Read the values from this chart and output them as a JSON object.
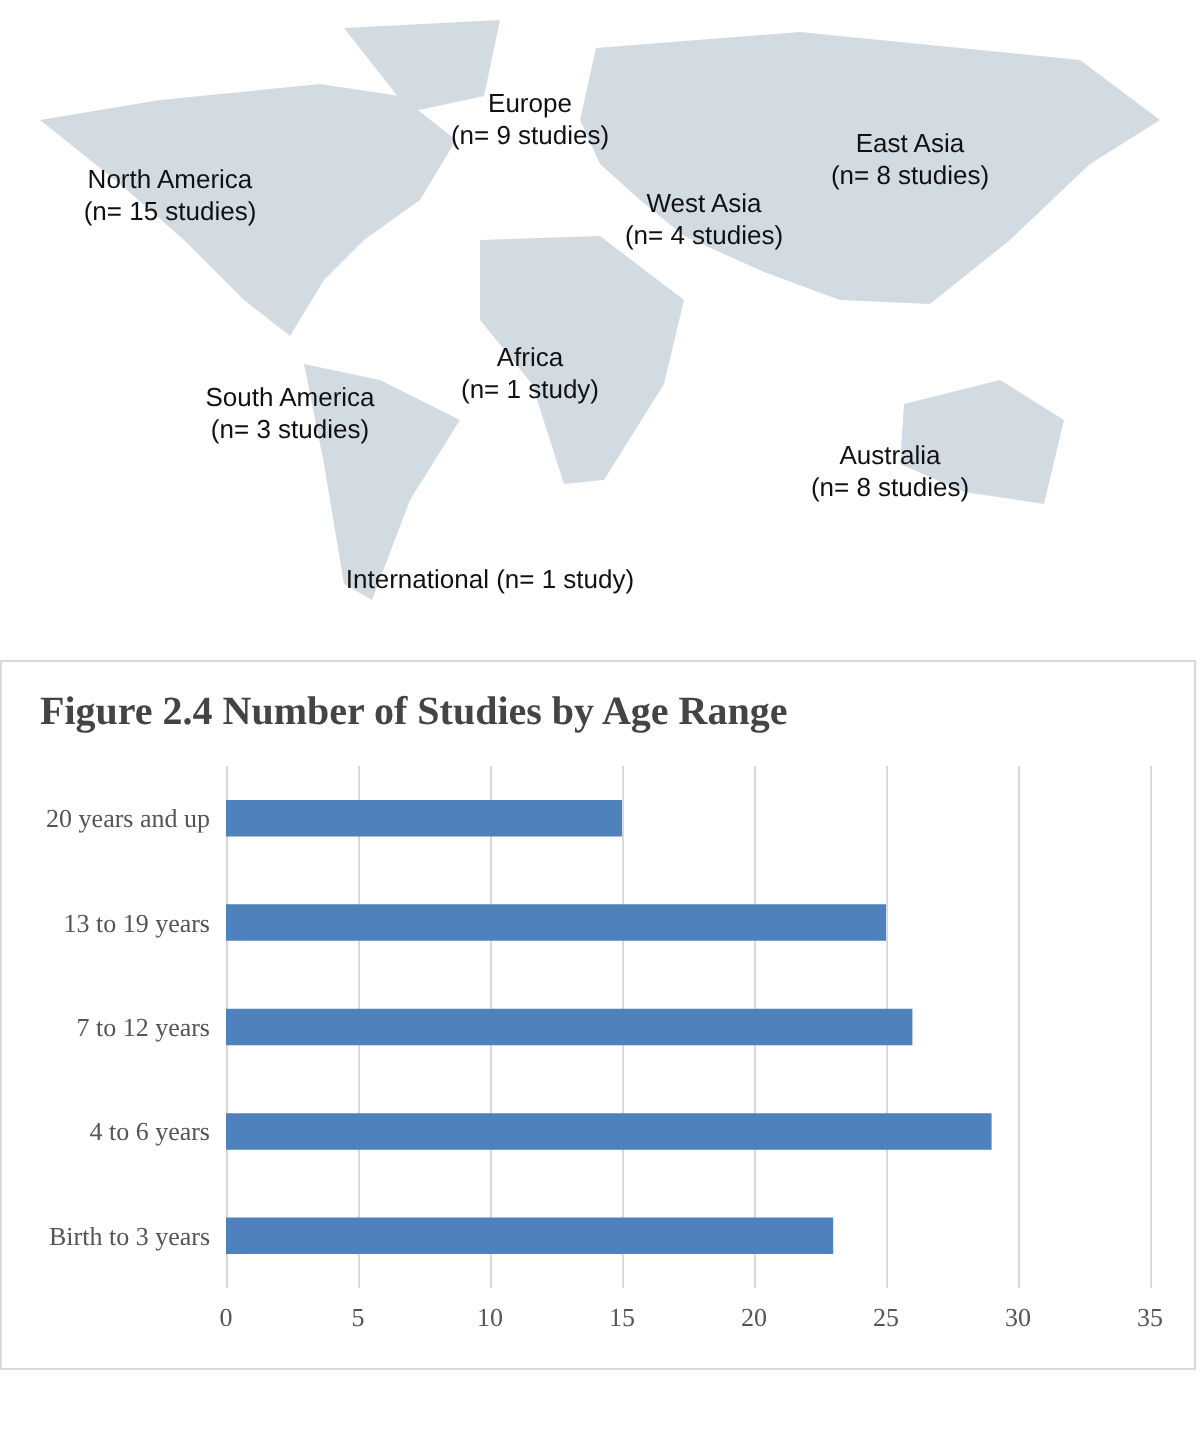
{
  "chart_data": [
    {
      "type": "other",
      "annotations": [
        "North America\n(n= 15 studies)",
        "Europe\n(n= 9 studies)",
        "West Asia\n(n= 4 studies)",
        "East Asia\n(n= 8 studies)",
        "South America\n(n= 3 studies)",
        "Africa\n(n= 1 study)",
        "Australia\n(n= 8 studies)",
        "International (n= 1 study)"
      ]
    },
    {
      "type": "bar",
      "orientation": "horizontal",
      "title": "Figure 2.4 Number of Studies by Age Range",
      "categories": [
        "20 years and up",
        "13 to 19 years",
        "7 to 12 years",
        "4 to 6 years",
        "Birth to 3 years"
      ],
      "values": [
        15,
        25,
        26,
        29,
        23
      ],
      "color": "#4f81bd",
      "xlim": [
        0,
        35
      ],
      "xticks": [
        0,
        5,
        10,
        15,
        20,
        25,
        30,
        35
      ],
      "grid": "x"
    }
  ]
}
